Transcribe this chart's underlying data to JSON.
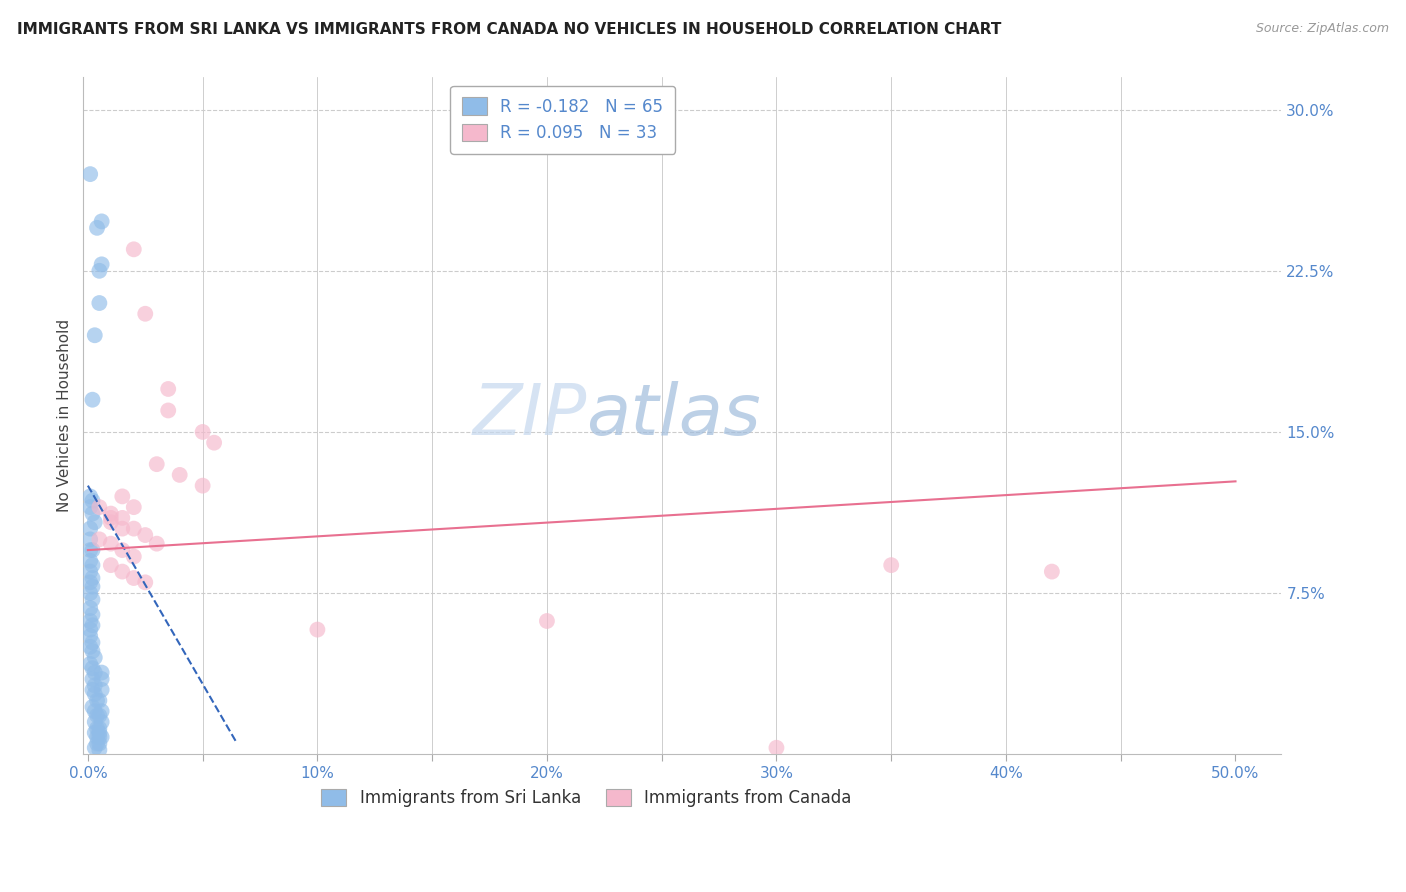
{
  "title": "IMMIGRANTS FROM SRI LANKA VS IMMIGRANTS FROM CANADA NO VEHICLES IN HOUSEHOLD CORRELATION CHART",
  "source": "Source: ZipAtlas.com",
  "ylabel": "No Vehicles in Household",
  "ylim": [
    0,
    0.315
  ],
  "xlim": [
    -0.002,
    0.52
  ],
  "x_ticks": [
    0.0,
    0.05,
    0.1,
    0.15,
    0.2,
    0.25,
    0.3,
    0.35,
    0.4,
    0.45,
    0.5
  ],
  "x_tick_labels": [
    "0.0%",
    "",
    "10%",
    "",
    "20%",
    "",
    "30%",
    "",
    "40%",
    "",
    "50.0%"
  ],
  "y_ticks_right": [
    0.075,
    0.15,
    0.225,
    0.3
  ],
  "y_tick_labels_right": [
    "7.5%",
    "15.0%",
    "22.5%",
    "30.0%"
  ],
  "legend_entries": [
    {
      "label": "R = -0.182   N = 65",
      "color": "#a8c8f0"
    },
    {
      "label": "R = 0.095   N = 33",
      "color": "#f5b8cc"
    }
  ],
  "sri_lanka_color": "#90bce8",
  "canada_color": "#f5b8cc",
  "sri_lanka_line_color": "#3366bb",
  "canada_line_color": "#e87090",
  "watermark_zip": "ZIP",
  "watermark_atlas": "atlas",
  "sri_lanka_points": [
    [
      0.001,
      0.27
    ],
    [
      0.004,
      0.245
    ],
    [
      0.006,
      0.248
    ],
    [
      0.005,
      0.225
    ],
    [
      0.006,
      0.228
    ],
    [
      0.005,
      0.21
    ],
    [
      0.003,
      0.195
    ],
    [
      0.002,
      0.165
    ],
    [
      0.001,
      0.105
    ],
    [
      0.002,
      0.095
    ],
    [
      0.001,
      0.12
    ],
    [
      0.002,
      0.112
    ],
    [
      0.003,
      0.108
    ],
    [
      0.001,
      0.115
    ],
    [
      0.002,
      0.118
    ],
    [
      0.001,
      0.1
    ],
    [
      0.001,
      0.095
    ],
    [
      0.001,
      0.09
    ],
    [
      0.002,
      0.088
    ],
    [
      0.001,
      0.085
    ],
    [
      0.002,
      0.082
    ],
    [
      0.001,
      0.08
    ],
    [
      0.002,
      0.078
    ],
    [
      0.001,
      0.075
    ],
    [
      0.002,
      0.072
    ],
    [
      0.001,
      0.068
    ],
    [
      0.002,
      0.065
    ],
    [
      0.001,
      0.062
    ],
    [
      0.002,
      0.06
    ],
    [
      0.001,
      0.058
    ],
    [
      0.001,
      0.055
    ],
    [
      0.002,
      0.052
    ],
    [
      0.001,
      0.05
    ],
    [
      0.002,
      0.048
    ],
    [
      0.003,
      0.045
    ],
    [
      0.001,
      0.042
    ],
    [
      0.002,
      0.04
    ],
    [
      0.003,
      0.038
    ],
    [
      0.002,
      0.035
    ],
    [
      0.003,
      0.032
    ],
    [
      0.002,
      0.03
    ],
    [
      0.003,
      0.028
    ],
    [
      0.004,
      0.025
    ],
    [
      0.002,
      0.022
    ],
    [
      0.003,
      0.02
    ],
    [
      0.004,
      0.018
    ],
    [
      0.003,
      0.015
    ],
    [
      0.004,
      0.012
    ],
    [
      0.003,
      0.01
    ],
    [
      0.004,
      0.008
    ],
    [
      0.005,
      0.005
    ],
    [
      0.003,
      0.003
    ],
    [
      0.005,
      0.002
    ],
    [
      0.004,
      0.005
    ],
    [
      0.005,
      0.008
    ],
    [
      0.005,
      0.01
    ],
    [
      0.006,
      0.008
    ],
    [
      0.005,
      0.012
    ],
    [
      0.006,
      0.015
    ],
    [
      0.005,
      0.018
    ],
    [
      0.006,
      0.02
    ],
    [
      0.005,
      0.025
    ],
    [
      0.006,
      0.03
    ],
    [
      0.006,
      0.035
    ],
    [
      0.006,
      0.038
    ]
  ],
  "canada_points": [
    [
      0.02,
      0.235
    ],
    [
      0.025,
      0.205
    ],
    [
      0.035,
      0.17
    ],
    [
      0.035,
      0.16
    ],
    [
      0.05,
      0.15
    ],
    [
      0.055,
      0.145
    ],
    [
      0.03,
      0.135
    ],
    [
      0.04,
      0.13
    ],
    [
      0.05,
      0.125
    ],
    [
      0.015,
      0.12
    ],
    [
      0.02,
      0.115
    ],
    [
      0.01,
      0.11
    ],
    [
      0.015,
      0.105
    ],
    [
      0.005,
      0.115
    ],
    [
      0.01,
      0.108
    ],
    [
      0.005,
      0.1
    ],
    [
      0.01,
      0.098
    ],
    [
      0.015,
      0.095
    ],
    [
      0.02,
      0.092
    ],
    [
      0.01,
      0.088
    ],
    [
      0.015,
      0.085
    ],
    [
      0.02,
      0.082
    ],
    [
      0.025,
      0.08
    ],
    [
      0.01,
      0.112
    ],
    [
      0.015,
      0.11
    ],
    [
      0.02,
      0.105
    ],
    [
      0.025,
      0.102
    ],
    [
      0.03,
      0.098
    ],
    [
      0.2,
      0.062
    ],
    [
      0.35,
      0.088
    ],
    [
      0.1,
      0.058
    ],
    [
      0.3,
      0.003
    ],
    [
      0.42,
      0.085
    ]
  ],
  "sl_line": {
    "x0": 0.0,
    "y0": 0.125,
    "x1": 0.065,
    "y1": 0.005
  },
  "ca_line": {
    "x0": 0.0,
    "y0": 0.095,
    "x1": 0.5,
    "y1": 0.127
  }
}
